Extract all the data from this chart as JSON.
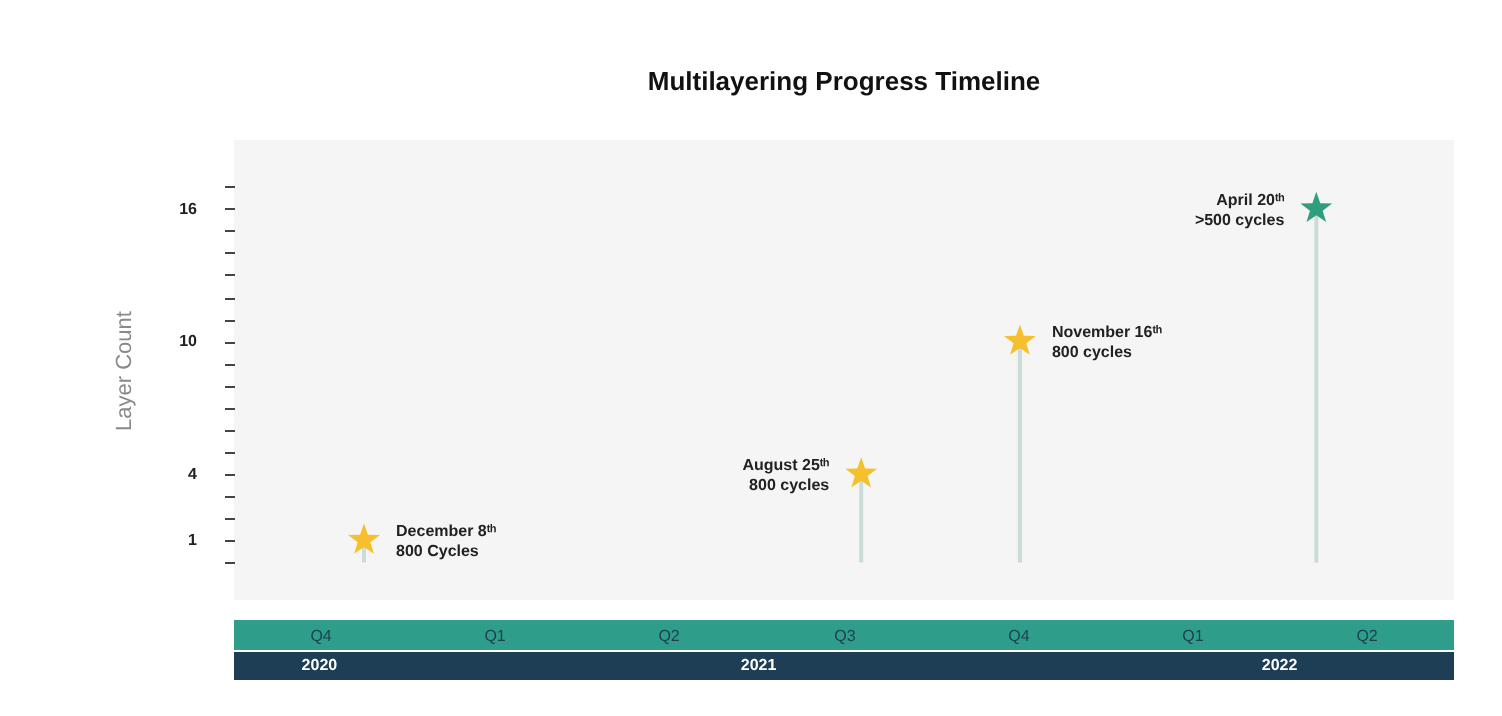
{
  "chart_data": {
    "type": "lollipop",
    "title": "Multilayering Progress Timeline",
    "ylabel": "Layer Count",
    "x": [
      "2020-12-08",
      "2021-08-25",
      "2021-11-16",
      "2022-04-20"
    ],
    "values": [
      1,
      4,
      10,
      16
    ],
    "colors": [
      "#f5c02c",
      "#f5c02c",
      "#f5c02c",
      "#2e9e7e"
    ],
    "marker": "star",
    "xlim": [
      "2020-10-01",
      "2022-07-01"
    ],
    "xticks": [
      {
        "value": "2020-11-15",
        "label": "Q4"
      },
      {
        "value": "2021-02-14",
        "label": "Q1"
      },
      {
        "value": "2021-05-16",
        "label": "Q2"
      },
      {
        "value": "2021-08-16",
        "label": "Q3"
      },
      {
        "value": "2021-11-15",
        "label": "Q4"
      },
      {
        "value": "2022-02-14",
        "label": "Q1"
      },
      {
        "value": "2022-05-16",
        "label": "Q2"
      }
    ],
    "ylim": [
      -1.7,
      19.1
    ],
    "yticks": [
      {
        "value": 0,
        "label": null
      },
      1,
      {
        "value": 2,
        "label": null
      },
      {
        "value": 3,
        "label": null
      },
      4,
      {
        "value": 5,
        "label": null
      },
      {
        "value": 6,
        "label": null
      },
      {
        "value": 7,
        "label": null
      },
      {
        "value": 8,
        "label": null
      },
      {
        "value": 9,
        "label": null
      },
      10,
      {
        "value": 11,
        "label": null
      },
      {
        "value": 12,
        "label": null
      },
      {
        "value": 13,
        "label": null
      },
      {
        "value": 14,
        "label": null
      },
      {
        "value": 15,
        "label": null
      },
      16,
      {
        "value": 17,
        "label": null
      }
    ],
    "grid": false,
    "annotations": [
      {
        "text": "December 8ᵗʰ\n800 Cycles",
        "x": "2020-12-08",
        "y": 1
      },
      {
        "text": "August 25ᵗʰ\n800 cycles",
        "x": "2021-08-25",
        "y": 4
      },
      {
        "text": "November 16ᵗʰ\n800 cycles",
        "x": "2021-11-16",
        "y": 10
      },
      {
        "text": "April 20ᵗʰ\n>500 cycles",
        "x": "2022-04-20",
        "y": 16
      },
      "2020",
      "2021",
      "2022"
    ]
  }
}
